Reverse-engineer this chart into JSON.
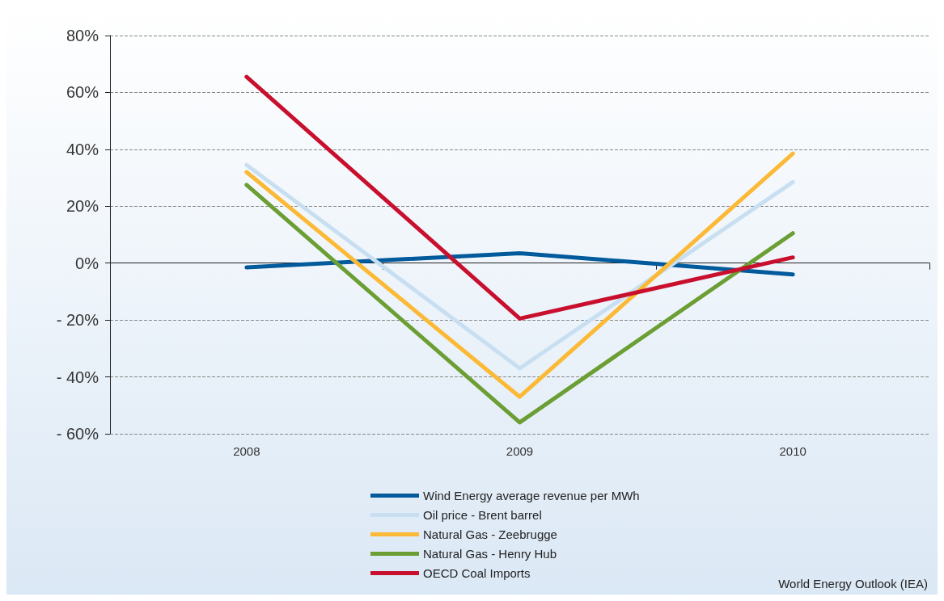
{
  "chart_data": {
    "type": "line",
    "categories": [
      "2008",
      "2009",
      "2010"
    ],
    "series": [
      {
        "name": "Wind Energy average revenue per MWh",
        "color": "#005a9c",
        "values": [
          -1.5,
          3.5,
          -4
        ]
      },
      {
        "name": "Oil price - Brent barrel",
        "color": "#c8dff2",
        "values": [
          34.5,
          -37,
          28.5
        ]
      },
      {
        "name": "Natural Gas - Zeebrugge",
        "color": "#fbb936",
        "values": [
          32,
          -47,
          38.5
        ]
      },
      {
        "name": "Natural Gas - Henry Hub",
        "color": "#6b9e33",
        "values": [
          27.5,
          -56,
          10.5
        ]
      },
      {
        "name": "OECD Coal Imports",
        "color": "#c8102e",
        "values": [
          65.5,
          -19.5,
          2
        ]
      }
    ],
    "ylim": [
      -60,
      80
    ],
    "yticks": [
      {
        "value": -60,
        "label": "- 60%"
      },
      {
        "value": -40,
        "label": "- 40%"
      },
      {
        "value": -20,
        "label": "- 20%"
      },
      {
        "value": 0,
        "label": "0%"
      },
      {
        "value": 20,
        "label": "20%"
      },
      {
        "value": 40,
        "label": "40%"
      },
      {
        "value": 60,
        "label": "60%"
      },
      {
        "value": 80,
        "label": "80%"
      }
    ],
    "grid": "y",
    "legend": "bottom",
    "line_style": "solid",
    "annotations": [
      "World Energy Outlook (IEA)"
    ]
  }
}
